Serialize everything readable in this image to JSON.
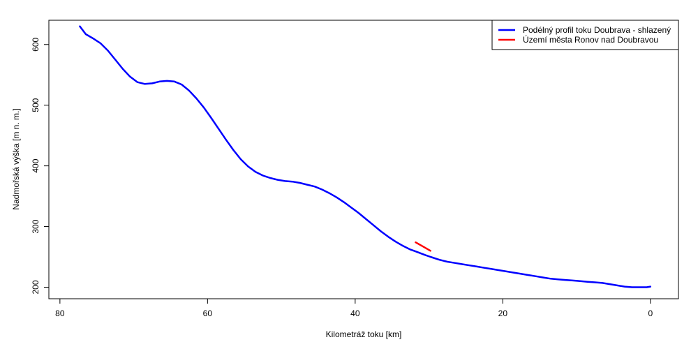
{
  "chart_data": {
    "type": "line",
    "title": "",
    "xlabel": "Kilometráž toku [km]",
    "ylabel": "Nadmořská výška [m n. m.]",
    "xlim": [
      81.5,
      -3.8
    ],
    "ylim": [
      181,
      640
    ],
    "x_ticks": [
      80,
      60,
      40,
      20,
      0
    ],
    "y_ticks": [
      200,
      300,
      400,
      500,
      600
    ],
    "grid": false,
    "legend_position": "top-right",
    "series": [
      {
        "name": "Podélný profil toku Doubrava - shlazený",
        "color": "#0000ff",
        "x": [
          77.3,
          76.5,
          75.5,
          74.5,
          73.5,
          72.5,
          71.5,
          70.5,
          69.5,
          68.5,
          67.5,
          66.5,
          65.5,
          64.5,
          63.5,
          62.5,
          61.5,
          60.5,
          59.5,
          58.5,
          57.5,
          56.5,
          55.5,
          54.5,
          53.5,
          52.5,
          51.5,
          50.5,
          49.5,
          48.5,
          47.5,
          46.5,
          45.5,
          44.5,
          43.5,
          42.5,
          41.5,
          40.5,
          39.5,
          38.5,
          37.5,
          36.5,
          35.5,
          34.5,
          33.5,
          32.5,
          31.8,
          30.5,
          29.8,
          28.5,
          27.5,
          26.5,
          25.5,
          24.5,
          23.5,
          22.5,
          21.5,
          20.5,
          19.5,
          18.5,
          17.5,
          16.5,
          15.5,
          14.5,
          13.5,
          12.5,
          11.5,
          10.5,
          9.5,
          8.5,
          7.5,
          6.5,
          5.5,
          4.5,
          3.5,
          2.5,
          1.5,
          0.5,
          0.0
        ],
        "y": [
          630,
          617,
          610,
          602,
          590,
          575,
          560,
          547,
          538,
          535,
          536,
          539,
          540,
          539,
          534,
          524,
          511,
          496,
          479,
          461,
          443,
          426,
          411,
          399,
          390,
          384,
          380,
          377,
          375,
          374,
          372,
          369,
          366,
          361,
          355,
          348,
          340,
          331,
          322,
          312,
          302,
          292,
          283,
          275,
          268,
          262,
          259,
          253,
          250,
          245,
          242,
          240,
          238,
          236,
          234,
          232,
          230,
          228,
          226,
          224,
          222,
          220,
          218,
          216,
          214,
          213,
          212,
          211,
          210,
          209,
          208,
          207,
          205,
          203,
          201,
          200,
          200,
          200,
          201
        ]
      },
      {
        "name": "Území města Ronov nad Doubravou",
        "color": "#ff0000",
        "x": [
          31.8,
          30.8,
          29.8
        ],
        "y": [
          274,
          267,
          260
        ]
      }
    ]
  }
}
